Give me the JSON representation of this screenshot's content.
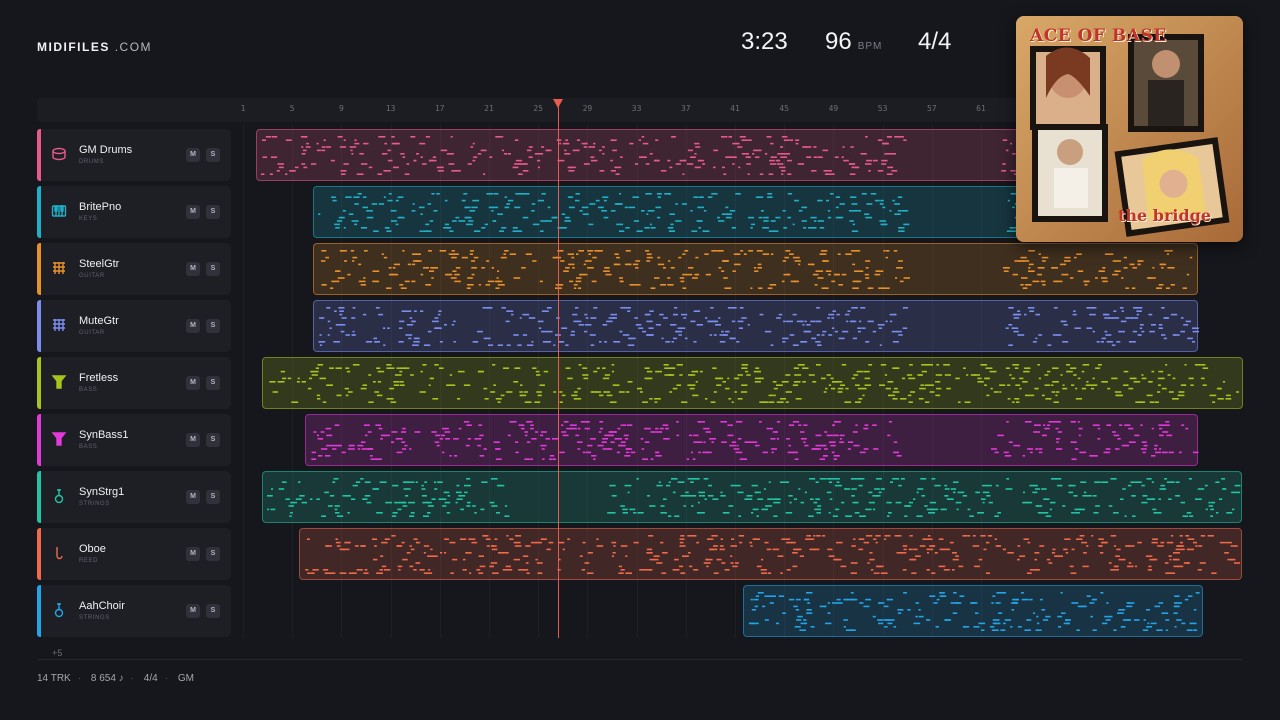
{
  "brand": {
    "name": "MIDIFILES",
    "suffix": ".COM"
  },
  "transport": {
    "time": "3:23",
    "bpm": "96",
    "bpm_unit": "BPM",
    "signature": "4/4"
  },
  "ruler": {
    "ticks": [
      "1",
      "5",
      "9",
      "13",
      "17",
      "21",
      "25",
      "29",
      "33",
      "37",
      "41",
      "45",
      "49",
      "53",
      "57",
      "61"
    ]
  },
  "tracks": [
    {
      "name": "GM Drums",
      "category": "DRUMS",
      "color": "#e85a8a",
      "icon": "drum-icon",
      "mute": "M",
      "solo": "S"
    },
    {
      "name": "BritePno",
      "category": "KEYS",
      "color": "#1fb0c8",
      "icon": "piano-icon",
      "mute": "M",
      "solo": "S"
    },
    {
      "name": "SteelGtr",
      "category": "GUITAR",
      "color": "#e8902a",
      "icon": "guitar-grid-icon",
      "mute": "M",
      "solo": "S"
    },
    {
      "name": "MuteGtr",
      "category": "GUITAR",
      "color": "#7b8ef0",
      "icon": "guitar-grid-icon",
      "mute": "M",
      "solo": "S"
    },
    {
      "name": "Fretless",
      "category": "BASS",
      "color": "#a8c21e",
      "icon": "bass-icon",
      "mute": "M",
      "solo": "S"
    },
    {
      "name": "SynBass1",
      "category": "BASS",
      "color": "#e23ad8",
      "icon": "bass-icon",
      "mute": "M",
      "solo": "S"
    },
    {
      "name": "SynStrg1",
      "category": "STRINGS",
      "color": "#22c4a4",
      "icon": "violin-icon",
      "mute": "M",
      "solo": "S"
    },
    {
      "name": "Oboe",
      "category": "REED",
      "color": "#f06a4a",
      "icon": "reed-icon",
      "mute": "M",
      "solo": "S"
    },
    {
      "name": "AahChoir",
      "category": "STRINGS",
      "color": "#22a4e8",
      "icon": "violin-icon",
      "mute": "M",
      "solo": "S"
    }
  ],
  "more_tracks": "+5",
  "footer": {
    "tracks": "14 TRK",
    "notes": "8 654 ♪",
    "signature": "4/4",
    "standard": "GM"
  },
  "album": {
    "artist": "ACE OF BASE",
    "title": "the bridge"
  }
}
